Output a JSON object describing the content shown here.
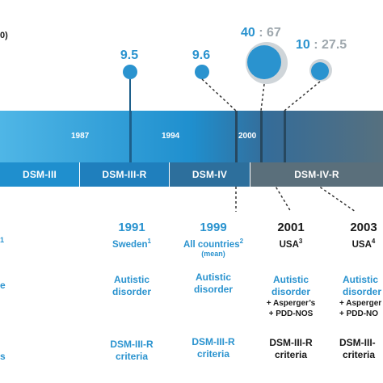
{
  "left_header": {
    "text": "0)"
  },
  "left_fragments": {
    "sup": "1",
    "row2": "e",
    "row3": "s"
  },
  "values": {
    "v1991": "9.5",
    "v1999": "9.6",
    "v2001_a": "40",
    "v2001_sep": ":",
    "v2001_b": "67",
    "v2003_a": "10",
    "v2003_sep": ":",
    "v2003_b": "27.5"
  },
  "timeline": {
    "years": [
      "1987",
      "1994",
      "2000"
    ],
    "bands": [
      "DSM-III",
      "DSM-III-R",
      "DSM-IV",
      "DSM-IV-R"
    ]
  },
  "columns": [
    {
      "year": "1991",
      "place": "Sweden",
      "sup": "1",
      "mean": "",
      "crit_line1": "Autistic",
      "crit_line2": "disorder",
      "extra1": "",
      "extra2": "",
      "manual1": "DSM-III-R",
      "manual2": "criteria"
    },
    {
      "year": "1999",
      "place": "All countries",
      "sup": "2",
      "mean": "(mean)",
      "crit_line1": "Autistic",
      "crit_line2": "disorder",
      "extra1": "",
      "extra2": "",
      "manual1": "DSM-III-R",
      "manual2": "criteria"
    },
    {
      "year": "2001",
      "place": "USA",
      "sup": "3",
      "mean": "",
      "crit_line1": "Autistic",
      "crit_line2": "disorder",
      "extra1": "+ Asperger’s",
      "extra2": "+ PDD-NOS",
      "manual1": "DSM-III-R",
      "manual2": "criteria"
    },
    {
      "year": "2003",
      "place": "USA",
      "sup": "4",
      "mean": "",
      "crit_line1": "Autistic",
      "crit_line2": "disorder",
      "extra1": "+ Asperger",
      "extra2": "+ PDD-NO",
      "manual1": "DSM-III-",
      "manual2": "criteria"
    }
  ],
  "colors": {
    "blue": "#2a93cf",
    "dark": "#1a1a1a",
    "gray": "#9ea7ad"
  }
}
